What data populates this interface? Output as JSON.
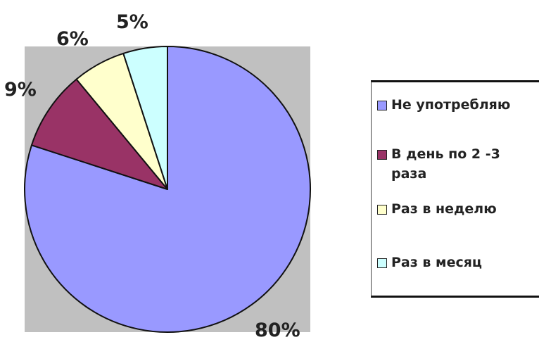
{
  "chart_data": {
    "type": "pie",
    "start_angle_deg": 0,
    "direction": "clockwise",
    "slices": [
      {
        "label": "Не употребляю",
        "value": 80,
        "display": "80%",
        "color": "#9999ff"
      },
      {
        "label": "В день по 2 -3 раза",
        "value": 9,
        "display": "9%",
        "color": "#993366"
      },
      {
        "label": "Раз в неделю",
        "value": 6,
        "display": "6%",
        "color": "#ffffcc"
      },
      {
        "label": "Раз в месяц",
        "value": 5,
        "display": "5%",
        "color": "#ccffff"
      }
    ],
    "plot_background": "#c0c0c0",
    "legend_position": "right"
  },
  "legend": {
    "items": [
      {
        "label": "Не употребляю",
        "color": "#9999ff"
      },
      {
        "label": "В день по 2 -3 раза",
        "color": "#993366"
      },
      {
        "label": "Раз в неделю",
        "color": "#ffffcc"
      },
      {
        "label": "Раз в месяц",
        "color": "#ccffff"
      }
    ]
  }
}
